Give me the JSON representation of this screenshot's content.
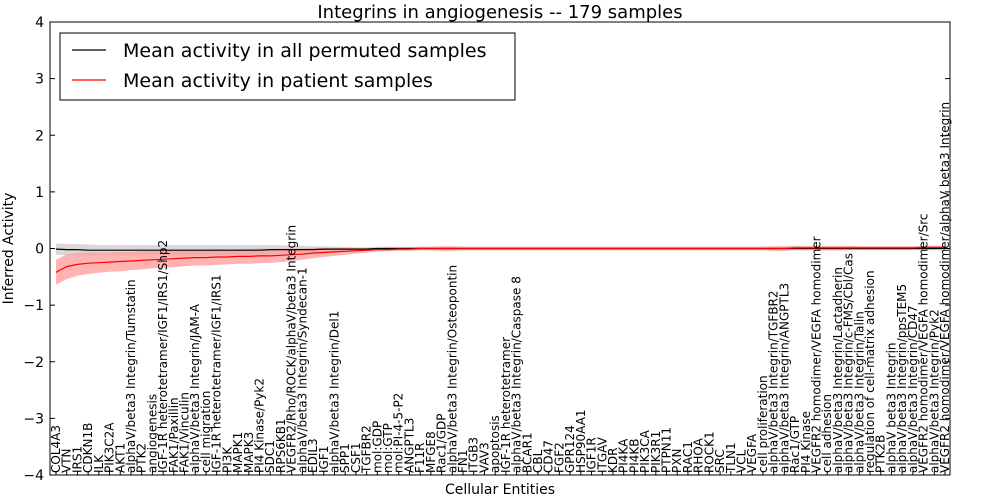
{
  "chart_data": {
    "type": "line",
    "title": "Integrins in angiogenesis -- 179 samples",
    "xlabel": "Cellular Entities",
    "ylabel": "Inferred Activity",
    "ylim": [
      -4,
      4
    ],
    "yticks": [
      -4,
      -3,
      -2,
      -1,
      0,
      1,
      2,
      3,
      4
    ],
    "grid": false,
    "legend_position": "top-left",
    "categories": [
      "COL4A3",
      "VTN",
      "IRS1",
      "CDKN1B",
      "ILK",
      "PIK3C2A",
      "AKT1",
      "alphaV/beta3 Integrin/Tumstatin",
      "PTK2",
      "angiogenesis",
      "IGF-1R heterotetramer/IGF1/IRS1/Shp2",
      "FAK1/Paxillin",
      "FAK1/Vinculin",
      "alphaV/beta3 Integrin/JAM-A",
      "cell migration",
      "IGF-1R heterotetramer/IGF1/IRS1",
      "PI3K",
      "MAPK1",
      "MAPK3",
      "PI4 Kinase/Pyk2",
      "SDC1",
      "RPS6KB1",
      "VEGFR2/Rho/ROCK/alphaV/beta3 Integrin",
      "alphaV/beta3 Integrin/Syndecan-1",
      "EDIL3",
      "IGF1",
      "alphaV/beta3 Integrin/Del1",
      "SPP1",
      "CSF1",
      "TGFBR2",
      "mol:GDP",
      "mol:GTP",
      "mol:PI-4-5-P2",
      "ANGPTL3",
      "F11R",
      "MFGE8",
      "Rac1/GDP",
      "alphaV/beta3 Integrin/Osteopontin",
      "FN1",
      "ITGB3",
      "VAV3",
      "apoptosis",
      "IGF-1R heterotetramer",
      "alphaV/beta3 Integrin/Caspase 8",
      "BCAR1",
      "CBL",
      "CD47",
      "FGF2",
      "GPR124",
      "HSP90AA1",
      "IGF1R",
      "ITGAV",
      "KDR",
      "PI4KA",
      "PI4KB",
      "PIK3CA",
      "PIK3R1",
      "PTPN11",
      "PXN",
      "RAC1",
      "RHOA",
      "ROCK1",
      "SRC",
      "TLN1",
      "VCL",
      "VEGFA",
      "cell proliferation",
      "alphaV/beta3 Integrin/TGFBR2",
      "alphaV/beta3 Integrin/ANGPTL3",
      "Rac1/GTP",
      "PI4 Kinase",
      "VEGFR2 homodimer/VEGFA homodimer",
      "cell adhesion",
      "alphaV/beta3 Integrin/Lactadherin",
      "alphaV/beta3 Integrin/c-FMS/Cbl/Cas",
      "alphaV/beta3 Integrin/Talin",
      "regulation of cell-matrix adhesion",
      "PTK2B",
      "alphaV beta3 Integrin",
      "alphaV/beta3 Integrin/ppsTEM5",
      "alphaV/beta3 Integrin/CD47",
      "VEGFR2 homodimer/VEGFA homodimer/Src",
      "alphaV/beta3 Integrin/Pyk2",
      "VEGFR2 homodimer/VEGFA homodimer/alphaV beta3 Integrin"
    ],
    "series": [
      {
        "name": "Mean activity in all permuted samples",
        "color": "#000000",
        "band_color": "#bfbfbf",
        "values": [
          -0.01,
          -0.02,
          -0.02,
          -0.03,
          -0.03,
          -0.03,
          -0.03,
          -0.03,
          -0.03,
          -0.03,
          -0.03,
          -0.03,
          -0.03,
          -0.03,
          -0.03,
          -0.03,
          -0.03,
          -0.03,
          -0.03,
          -0.03,
          -0.02,
          -0.02,
          -0.02,
          -0.02,
          -0.02,
          -0.01,
          -0.01,
          -0.01,
          -0.01,
          -0.01,
          0,
          0,
          0,
          0,
          0,
          0,
          0,
          0,
          0,
          0,
          0,
          0,
          0,
          0,
          0,
          0,
          0,
          0,
          0,
          0,
          0,
          0,
          0,
          0,
          0,
          0,
          0,
          0,
          0,
          0,
          0,
          0,
          0,
          0,
          0,
          0,
          0,
          0,
          0,
          0,
          0,
          0,
          0,
          0,
          0,
          0,
          0,
          0,
          0,
          0,
          0,
          0,
          0,
          0
        ],
        "band": [
          0.1,
          0.1,
          0.1,
          0.1,
          0.09,
          0.09,
          0.09,
          0.09,
          0.09,
          0.09,
          0.09,
          0.09,
          0.09,
          0.09,
          0.09,
          0.09,
          0.09,
          0.09,
          0.09,
          0.09,
          0.08,
          0.08,
          0.07,
          0.07,
          0.06,
          0.05,
          0.04,
          0.04,
          0.03,
          0.03,
          0.03,
          0.03,
          0.03,
          0.03,
          0.03,
          0.03,
          0.03,
          0.03,
          0.03,
          0.03,
          0.03,
          0.03,
          0.03,
          0.03,
          0.03,
          0.03,
          0.03,
          0.03,
          0.03,
          0.03,
          0.03,
          0.03,
          0.03,
          0.03,
          0.03,
          0.03,
          0.03,
          0.03,
          0.03,
          0.03,
          0.03,
          0.03,
          0.03,
          0.03,
          0.03,
          0.03,
          0.03,
          0.03,
          0.03,
          0.03,
          0.03,
          0.03,
          0.03,
          0.03,
          0.03,
          0.03,
          0.03,
          0.03,
          0.03,
          0.03,
          0.03,
          0.03,
          0.03,
          0.03
        ]
      },
      {
        "name": "Mean activity in patient samples",
        "color": "#ff0000",
        "band_color": "#ff9999",
        "values": [
          -0.42,
          -0.32,
          -0.28,
          -0.26,
          -0.25,
          -0.24,
          -0.23,
          -0.22,
          -0.21,
          -0.2,
          -0.19,
          -0.18,
          -0.17,
          -0.16,
          -0.16,
          -0.15,
          -0.15,
          -0.14,
          -0.14,
          -0.13,
          -0.13,
          -0.12,
          -0.11,
          -0.1,
          -0.08,
          -0.07,
          -0.06,
          -0.05,
          -0.04,
          -0.03,
          -0.02,
          -0.02,
          -0.01,
          -0.01,
          0,
          0,
          0,
          0,
          0,
          0,
          0,
          0,
          0,
          0,
          0,
          0,
          0,
          0,
          0,
          0,
          0,
          0,
          0,
          0,
          0,
          0,
          0,
          0,
          0,
          0,
          0,
          0,
          0,
          0,
          0,
          0,
          0,
          0,
          0,
          0.01,
          0.01,
          0.01,
          0.01,
          0.01,
          0.01,
          0.01,
          0.01,
          0.01,
          0.01,
          0.01,
          0.01,
          0.02,
          0.02,
          0.02
        ],
        "band": [
          0.22,
          0.22,
          0.2,
          0.19,
          0.18,
          0.17,
          0.17,
          0.16,
          0.16,
          0.15,
          0.15,
          0.15,
          0.14,
          0.14,
          0.14,
          0.14,
          0.13,
          0.13,
          0.13,
          0.13,
          0.12,
          0.12,
          0.11,
          0.1,
          0.09,
          0.08,
          0.07,
          0.06,
          0.05,
          0.04,
          0.03,
          0.03,
          0.03,
          0.03,
          0.03,
          0.03,
          0.04,
          0.04,
          0.03,
          0.03,
          0.03,
          0.03,
          0.03,
          0.03,
          0.03,
          0.03,
          0.03,
          0.03,
          0.03,
          0.03,
          0.03,
          0.03,
          0.03,
          0.03,
          0.03,
          0.03,
          0.03,
          0.03,
          0.03,
          0.03,
          0.03,
          0.03,
          0.03,
          0.03,
          0.03,
          0.03,
          0.03,
          0.04,
          0.04,
          0.04,
          0.04,
          0.04,
          0.04,
          0.04,
          0.04,
          0.03,
          0.03,
          0.03,
          0.03,
          0.03,
          0.03,
          0.03,
          0.03,
          0.03
        ]
      }
    ]
  }
}
